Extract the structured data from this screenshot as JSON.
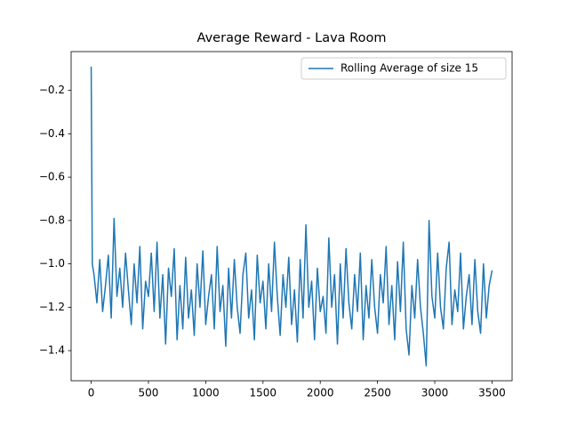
{
  "chart_data": {
    "type": "line",
    "title": "Average Reward - Lava Room",
    "x": [
      0,
      5,
      10,
      25,
      50,
      75,
      100,
      125,
      150,
      175,
      200,
      225,
      250,
      275,
      300,
      325,
      350,
      375,
      400,
      425,
      450,
      475,
      500,
      525,
      550,
      575,
      600,
      625,
      650,
      675,
      700,
      725,
      750,
      775,
      800,
      825,
      850,
      875,
      900,
      925,
      950,
      975,
      1000,
      1025,
      1050,
      1075,
      1100,
      1125,
      1150,
      1175,
      1200,
      1225,
      1250,
      1275,
      1300,
      1325,
      1350,
      1375,
      1400,
      1425,
      1450,
      1475,
      1500,
      1525,
      1550,
      1575,
      1600,
      1625,
      1650,
      1675,
      1700,
      1725,
      1750,
      1775,
      1800,
      1825,
      1850,
      1875,
      1900,
      1925,
      1950,
      1975,
      2000,
      2025,
      2050,
      2075,
      2100,
      2125,
      2150,
      2175,
      2200,
      2225,
      2250,
      2275,
      2300,
      2325,
      2350,
      2375,
      2400,
      2425,
      2450,
      2475,
      2500,
      2525,
      2550,
      2575,
      2600,
      2625,
      2650,
      2675,
      2700,
      2725,
      2750,
      2775,
      2800,
      2825,
      2850,
      2875,
      2900,
      2925,
      2950,
      2975,
      3000,
      3025,
      3050,
      3075,
      3100,
      3125,
      3150,
      3175,
      3200,
      3225,
      3250,
      3275,
      3300,
      3325,
      3350,
      3375,
      3400,
      3425,
      3450,
      3475,
      3500
    ],
    "series": [
      {
        "name": "Rolling Average of size 15",
        "color": "#1f77b4",
        "values": [
          -0.09,
          -0.55,
          -1.0,
          -1.05,
          -1.18,
          -0.98,
          -1.22,
          -1.1,
          -0.96,
          -1.25,
          -0.79,
          -1.15,
          -1.02,
          -1.2,
          -0.95,
          -1.12,
          -1.28,
          -1.0,
          -1.18,
          -0.92,
          -1.3,
          -1.08,
          -1.15,
          -0.95,
          -1.22,
          -0.9,
          -1.25,
          -1.05,
          -1.37,
          -1.02,
          -1.15,
          -0.93,
          -1.35,
          -1.1,
          -1.3,
          -0.97,
          -1.25,
          -1.12,
          -1.33,
          -1.0,
          -1.2,
          -0.94,
          -1.28,
          -1.15,
          -1.05,
          -1.3,
          -0.92,
          -1.22,
          -1.1,
          -1.38,
          -1.02,
          -1.25,
          -0.98,
          -1.2,
          -1.32,
          -1.05,
          -0.95,
          -1.25,
          -1.12,
          -1.35,
          -0.96,
          -1.18,
          -1.08,
          -1.3,
          -1.0,
          -1.22,
          -0.9,
          -1.15,
          -1.33,
          -1.05,
          -1.2,
          -0.97,
          -1.28,
          -1.12,
          -1.36,
          -0.98,
          -1.25,
          -0.82,
          -1.2,
          -1.08,
          -1.35,
          -1.02,
          -1.22,
          -1.15,
          -1.32,
          -0.88,
          -1.2,
          -1.05,
          -1.37,
          -1.0,
          -1.25,
          -0.93,
          -1.18,
          -1.3,
          -1.05,
          -1.22,
          -0.95,
          -1.35,
          -1.1,
          -1.25,
          -0.98,
          -1.2,
          -1.32,
          -1.05,
          -1.18,
          -0.92,
          -1.28,
          -1.1,
          -1.35,
          -0.99,
          -1.22,
          -0.9,
          -1.3,
          -1.42,
          -1.1,
          -1.25,
          -0.98,
          -1.2,
          -1.32,
          -1.47,
          -0.8,
          -1.15,
          -1.25,
          -0.95,
          -1.2,
          -1.3,
          -1.02,
          -0.9,
          -1.28,
          -1.12,
          -1.22,
          -0.95,
          -1.3,
          -1.15,
          -1.05,
          -1.28,
          -0.98,
          -1.22,
          -1.32,
          -1.0,
          -1.25,
          -1.1,
          -1.03
        ]
      }
    ],
    "xlim": [
      -175,
      3675
    ],
    "xticks": [
      0,
      500,
      1000,
      1500,
      2000,
      2500,
      3000,
      3500
    ],
    "ylim": [
      -1.539,
      -0.021
    ],
    "yticks": [
      {
        "value": -1.4,
        "label": "−1.4"
      },
      {
        "value": -1.2,
        "label": "−1.2"
      },
      {
        "value": -1.0,
        "label": "−1.0"
      },
      {
        "value": -0.8,
        "label": "−0.8"
      },
      {
        "value": -0.6,
        "label": "−0.6"
      },
      {
        "value": -0.4,
        "label": "−0.4"
      },
      {
        "value": -0.2,
        "label": "−0.2"
      }
    ],
    "legend": "upper right"
  }
}
